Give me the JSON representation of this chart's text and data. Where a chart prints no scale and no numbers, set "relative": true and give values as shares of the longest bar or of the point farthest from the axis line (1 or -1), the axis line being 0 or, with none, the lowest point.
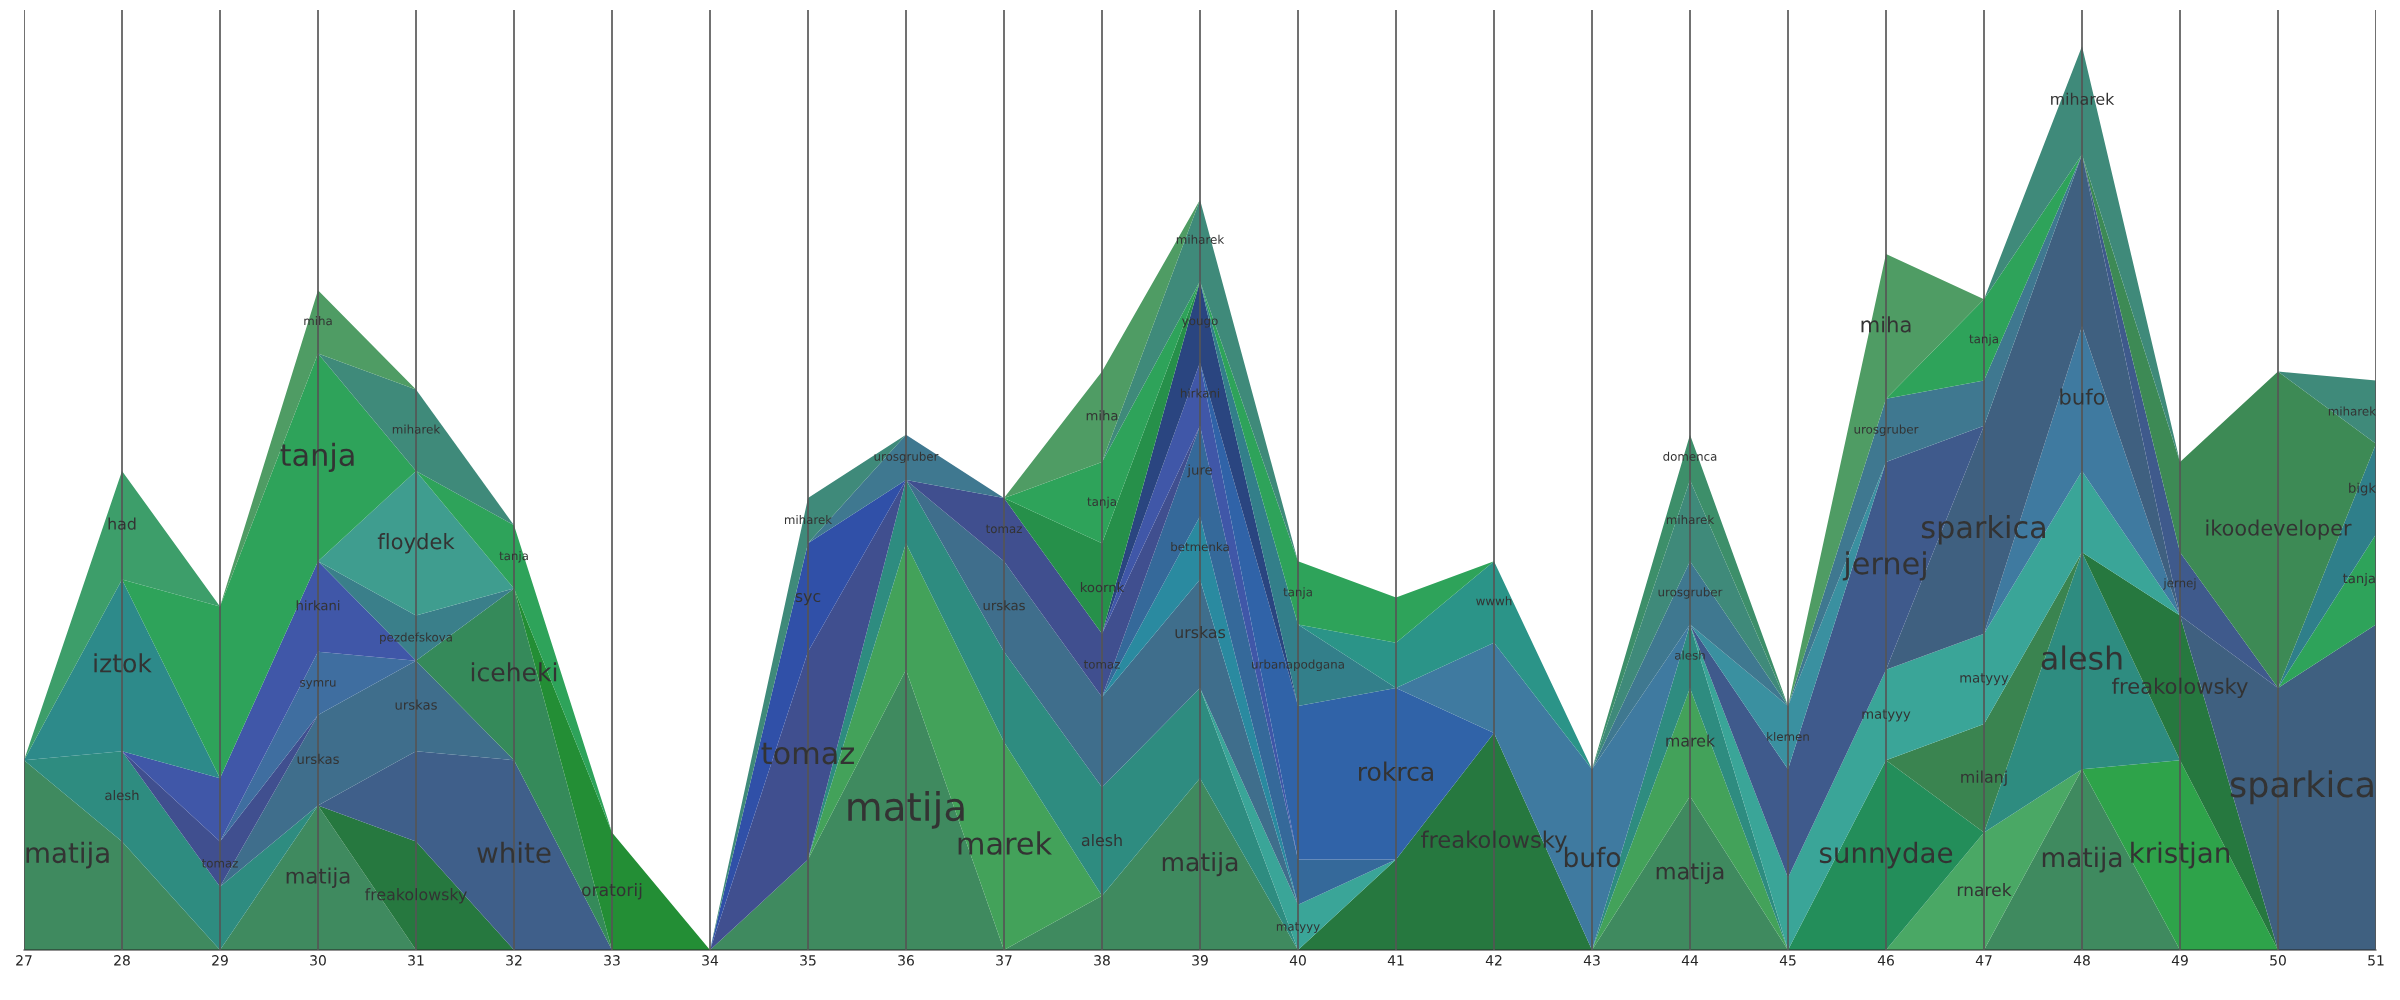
{
  "chart_data": {
    "type": "area",
    "stacked": true,
    "relative": true,
    "grid": "x",
    "xlim": [
      27,
      51
    ],
    "xticks": [
      27,
      28,
      29,
      30,
      31,
      32,
      33,
      34,
      35,
      36,
      37,
      38,
      39,
      40,
      41,
      42,
      43,
      44,
      45,
      46,
      47,
      48,
      49,
      50,
      51
    ],
    "x": [
      27,
      28,
      29,
      30,
      31,
      32,
      33,
      34,
      35,
      36,
      37,
      38,
      39,
      40,
      41,
      42,
      43,
      44,
      45,
      46,
      47,
      48,
      49,
      50,
      51
    ],
    "series": [
      {
        "name": "matija",
        "color": "#3f8a5f",
        "values": [
          0.21,
          0.12,
          0,
          0.16,
          0,
          null,
          null,
          0,
          0.1,
          0.31,
          0,
          0.06,
          0.19,
          0,
          null,
          null,
          0,
          0.17,
          0,
          null,
          0,
          0.2,
          0,
          null,
          null
        ]
      },
      {
        "name": "marek",
        "color": "#43a25a",
        "values": [
          null,
          null,
          null,
          null,
          null,
          null,
          null,
          null,
          0,
          0.14,
          0.23,
          0,
          null,
          null,
          null,
          null,
          0,
          0.12,
          0,
          null,
          null,
          null,
          null,
          null,
          null
        ]
      },
      {
        "name": "rnarek",
        "color": "#4aa865",
        "values": [
          null,
          null,
          null,
          null,
          null,
          null,
          null,
          null,
          null,
          null,
          null,
          null,
          null,
          null,
          null,
          null,
          null,
          null,
          null,
          0,
          0.13,
          0,
          null,
          null,
          null
        ]
      },
      {
        "name": "kristjan",
        "color": "#2ea34a",
        "values": [
          null,
          null,
          null,
          null,
          null,
          null,
          null,
          null,
          null,
          null,
          null,
          null,
          null,
          null,
          null,
          null,
          null,
          null,
          null,
          null,
          null,
          0,
          0.21,
          0,
          null
        ]
      },
      {
        "name": "sunnydae",
        "color": "#238e5a",
        "values": [
          null,
          null,
          null,
          null,
          null,
          null,
          null,
          null,
          null,
          null,
          null,
          null,
          null,
          null,
          null,
          null,
          null,
          null,
          0,
          0.21,
          0,
          null,
          null,
          null,
          null
        ]
      },
      {
        "name": "alesh",
        "color": "#2e8c80",
        "values": [
          0,
          0.1,
          0.07,
          0,
          null,
          null,
          null,
          null,
          0,
          0.07,
          0.1,
          0.12,
          0.1,
          0,
          null,
          null,
          0,
          0.07,
          0,
          null,
          0,
          0.24,
          0,
          null,
          null
        ]
      },
      {
        "name": "freakolowsky",
        "color": "#26783f",
        "values": [
          null,
          null,
          null,
          0,
          0.12,
          0,
          null,
          null,
          null,
          null,
          null,
          null,
          null,
          0,
          0.1,
          0.24,
          0,
          null,
          null,
          null,
          null,
          0,
          0.16,
          0,
          null
        ]
      },
      {
        "name": "milanj",
        "color": "#3a8450",
        "values": [
          null,
          null,
          null,
          null,
          null,
          null,
          null,
          null,
          null,
          null,
          null,
          null,
          null,
          null,
          null,
          null,
          null,
          null,
          null,
          0,
          0.12,
          0,
          null,
          null,
          null
        ]
      },
      {
        "name": "white",
        "color": "#3f5f8a",
        "values": [
          null,
          null,
          null,
          0,
          0.1,
          0.21,
          0,
          null,
          null,
          null,
          null,
          null,
          null,
          null,
          null,
          null,
          null,
          null,
          null,
          null,
          null,
          null,
          null,
          null,
          null
        ]
      },
      {
        "name": "matyyy",
        "color": "#3aa598",
        "values": [
          null,
          null,
          null,
          null,
          null,
          null,
          null,
          null,
          null,
          null,
          null,
          null,
          0,
          0.05,
          0,
          null,
          null,
          0,
          0.08,
          0.1,
          0.1,
          0.09,
          0,
          null,
          null
        ]
      },
      {
        "name": "urskas",
        "color": "#3f6e8c",
        "values": [
          null,
          null,
          0,
          0.1,
          0.1,
          0,
          null,
          null,
          null,
          0,
          0.1,
          0.1,
          0.12,
          0,
          null,
          null,
          null,
          null,
          null,
          null,
          null,
          null,
          null,
          null,
          null
        ]
      },
      {
        "name": "betmenka",
        "color": "#2a8aa0",
        "values": [
          null,
          null,
          null,
          null,
          null,
          null,
          null,
          null,
          null,
          null,
          null,
          0,
          0.07,
          0,
          null,
          null,
          null,
          null,
          null,
          null,
          null,
          null,
          null,
          null,
          null
        ]
      },
      {
        "name": "jure",
        "color": "#35699a",
        "values": [
          null,
          null,
          null,
          null,
          null,
          null,
          null,
          null,
          null,
          null,
          null,
          0,
          0.1,
          0.05,
          0,
          null,
          null,
          null,
          null,
          null,
          null,
          null,
          null,
          null,
          null
        ]
      },
      {
        "name": "tomaz",
        "color": "#404f8f",
        "values": [
          null,
          0,
          0.05,
          0,
          null,
          null,
          null,
          0,
          0.23,
          0,
          0.07,
          0.07,
          0,
          null,
          null,
          null,
          null,
          null,
          null,
          null,
          null,
          null,
          null,
          null,
          null
        ]
      },
      {
        "name": "symru",
        "color": "#3f6ea0",
        "values": [
          null,
          null,
          0,
          0.07,
          0,
          null,
          null,
          null,
          null,
          null,
          null,
          null,
          null,
          null,
          null,
          null,
          null,
          null,
          null,
          null,
          null,
          null,
          null,
          null,
          null
        ]
      },
      {
        "name": "hirkani",
        "color": "#4057a8",
        "values": [
          null,
          0,
          0.07,
          0.1,
          0,
          null,
          null,
          null,
          null,
          null,
          null,
          0,
          0.07,
          0,
          null,
          null,
          null,
          null,
          null,
          null,
          null,
          null,
          null,
          null,
          null
        ]
      },
      {
        "name": "iztok",
        "color": "#2d8a8a",
        "values": [
          0,
          0.19,
          0,
          null,
          null,
          null,
          null,
          null,
          null,
          null,
          null,
          null,
          null,
          null,
          null,
          null,
          null,
          null,
          null,
          null,
          null,
          null,
          null,
          null,
          null
        ]
      },
      {
        "name": "rokrca",
        "color": "#3063a8",
        "values": [
          null,
          null,
          null,
          null,
          null,
          null,
          null,
          null,
          null,
          null,
          null,
          null,
          0,
          0.17,
          0.19,
          0,
          null,
          null,
          null,
          null,
          null,
          null,
          null,
          null,
          null
        ]
      },
      {
        "name": "bufo",
        "color": "#3f7aa0",
        "values": [
          null,
          null,
          null,
          null,
          null,
          null,
          null,
          null,
          null,
          null,
          null,
          null,
          null,
          null,
          0,
          0.1,
          0.2,
          0,
          null,
          null,
          0,
          0.16,
          0,
          null,
          null
        ]
      },
      {
        "name": "sparkica",
        "color": "#3f6080",
        "values": [
          null,
          null,
          null,
          null,
          null,
          null,
          null,
          null,
          null,
          null,
          null,
          null,
          null,
          null,
          null,
          null,
          null,
          null,
          null,
          0,
          0.23,
          0.19,
          0,
          0.29,
          0.36
        ]
      },
      {
        "name": "jernej",
        "color": "#3f5a8c",
        "values": [
          null,
          null,
          null,
          null,
          null,
          null,
          null,
          null,
          null,
          null,
          null,
          null,
          null,
          null,
          null,
          null,
          null,
          0,
          0.12,
          0.23,
          0,
          0,
          0.07,
          0,
          null
        ]
      },
      {
        "name": "iceheki",
        "color": "#358a5a",
        "values": [
          null,
          null,
          null,
          null,
          0,
          0.19,
          0,
          null,
          null,
          null,
          null,
          null,
          null,
          null,
          null,
          null,
          null,
          null,
          null,
          null,
          null,
          null,
          null,
          null,
          null
        ]
      },
      {
        "name": "yougo",
        "color": "#2a4580",
        "values": [
          null,
          null,
          null,
          null,
          null,
          null,
          null,
          null,
          null,
          null,
          null,
          0,
          0.09,
          0,
          null,
          null,
          null,
          null,
          null,
          null,
          null,
          null,
          null,
          null,
          null
        ]
      },
      {
        "name": "urbanapodgana",
        "color": "#337f8a",
        "values": [
          null,
          null,
          null,
          null,
          null,
          null,
          null,
          null,
          null,
          null,
          null,
          null,
          0,
          0.09,
          0,
          null,
          null,
          null,
          null,
          null,
          null,
          null,
          null,
          null,
          null
        ]
      },
      {
        "name": "oratorij",
        "color": "#238e35",
        "values": [
          null,
          null,
          null,
          null,
          null,
          0,
          0.13,
          0,
          null,
          null,
          null,
          null,
          null,
          null,
          null,
          null,
          null,
          null,
          null,
          null,
          null,
          null,
          null,
          null,
          null
        ]
      },
      {
        "name": "syc",
        "color": "#3050a8",
        "values": [
          null,
          null,
          null,
          null,
          null,
          null,
          null,
          0,
          0.12,
          0,
          null,
          null,
          null,
          null,
          null,
          null,
          null,
          null,
          null,
          null,
          null,
          null,
          null,
          null,
          null
        ]
      },
      {
        "name": "pezdefskova",
        "color": "#3a7f8a",
        "values": [
          null,
          null,
          null,
          0,
          0.05,
          0,
          null,
          null,
          null,
          null,
          null,
          null,
          null,
          null,
          null,
          null,
          null,
          null,
          null,
          null,
          null,
          null,
          null,
          null,
          null
        ]
      },
      {
        "name": "floydek",
        "color": "#3f9d8f",
        "values": [
          null,
          null,
          null,
          0,
          0.16,
          0,
          null,
          null,
          null,
          null,
          null,
          null,
          null,
          null,
          null,
          null,
          null,
          null,
          null,
          null,
          null,
          null,
          null,
          null,
          null
        ]
      },
      {
        "name": "klemen",
        "color": "#3a90a0",
        "values": [
          null,
          null,
          null,
          null,
          null,
          null,
          null,
          null,
          null,
          null,
          null,
          null,
          null,
          null,
          null,
          null,
          null,
          0,
          0.07,
          0,
          null,
          null,
          null,
          null,
          null
        ]
      },
      {
        "name": "wwwh",
        "color": "#2b9488",
        "values": [
          null,
          null,
          null,
          null,
          null,
          null,
          null,
          null,
          null,
          null,
          null,
          null,
          null,
          0,
          0.05,
          0.09,
          0,
          null,
          null,
          null,
          null,
          null,
          null,
          null,
          null
        ]
      },
      {
        "name": "koornk",
        "color": "#26904a",
        "values": [
          null,
          null,
          null,
          null,
          null,
          null,
          null,
          null,
          null,
          null,
          0,
          0.1,
          0,
          null,
          null,
          null,
          null,
          null,
          null,
          null,
          null,
          null,
          null,
          null,
          null
        ]
      },
      {
        "name": "urosgruber",
        "color": "#3f7890",
        "values": [
          null,
          null,
          null,
          null,
          null,
          null,
          null,
          null,
          0,
          0.05,
          0,
          null,
          null,
          null,
          null,
          null,
          0,
          0.07,
          0,
          0.07,
          0.05,
          0,
          null,
          null,
          null
        ]
      },
      {
        "name": "tanja",
        "color": "#2ea35a",
        "values": [
          null,
          0,
          0.19,
          0.23,
          0,
          0.07,
          0,
          null,
          null,
          null,
          0,
          0.09,
          0,
          0.07,
          0.05,
          0,
          null,
          null,
          null,
          0,
          0.09,
          0,
          null,
          0,
          0.1
        ]
      },
      {
        "name": "had",
        "color": "#3d9e6a",
        "values": [
          0,
          0.12,
          0,
          null,
          null,
          null,
          null,
          null,
          null,
          null,
          null,
          null,
          null,
          null,
          null,
          null,
          null,
          null,
          null,
          null,
          null,
          null,
          null,
          null,
          null
        ]
      },
      {
        "name": "bigk",
        "color": "#2f7f8a",
        "values": [
          null,
          null,
          null,
          null,
          null,
          null,
          null,
          null,
          null,
          null,
          null,
          null,
          null,
          null,
          null,
          null,
          null,
          null,
          null,
          null,
          null,
          null,
          null,
          0,
          0.1
        ]
      },
      {
        "name": "ikoodeveloper",
        "color": "#3d8a55",
        "values": [
          null,
          null,
          null,
          null,
          null,
          null,
          null,
          null,
          null,
          null,
          null,
          null,
          null,
          null,
          null,
          null,
          null,
          null,
          null,
          null,
          null,
          0,
          0.1,
          0.35,
          0
        ]
      },
      {
        "name": "miharek",
        "color": "#3f8a7a",
        "values": [
          null,
          null,
          null,
          0,
          0.09,
          0,
          null,
          0,
          0.05,
          0,
          null,
          0,
          0.09,
          0,
          null,
          null,
          0,
          0.09,
          0,
          null,
          0,
          0.12,
          0,
          0,
          0.07
        ]
      },
      {
        "name": "domenca",
        "color": "#3d8f6a",
        "values": [
          null,
          null,
          null,
          null,
          null,
          null,
          null,
          null,
          null,
          null,
          null,
          null,
          null,
          null,
          null,
          null,
          0,
          0.05,
          0,
          null,
          null,
          null,
          null,
          null,
          null
        ]
      },
      {
        "name": "miha",
        "color": "#4f9c64",
        "values": [
          null,
          null,
          0,
          0.07,
          0,
          null,
          null,
          null,
          null,
          null,
          0,
          0.1,
          0,
          null,
          null,
          null,
          null,
          null,
          0,
          0.16,
          0,
          null,
          null,
          null,
          null
        ]
      }
    ]
  }
}
